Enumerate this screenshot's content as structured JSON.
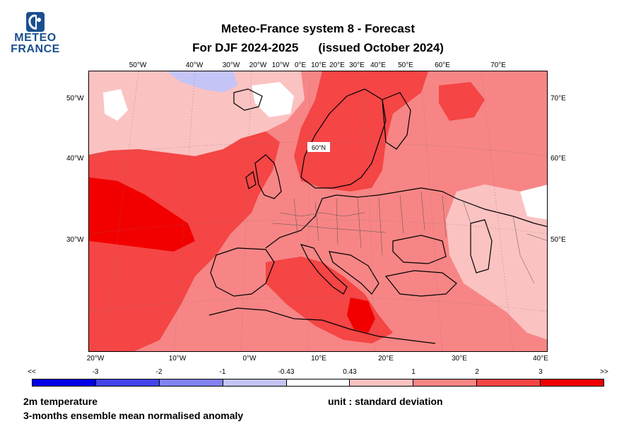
{
  "logo": {
    "line1": "METEO",
    "line2": "FRANCE"
  },
  "title": {
    "line1": "Meteo-France system 8  -  Forecast",
    "line2_left": "For DJF 2024-2025",
    "line2_right": "(issued October 2024)"
  },
  "map": {
    "graticule_label": "60°N",
    "top_labels": [
      "50°W",
      "40°W",
      "30°W",
      "20°W",
      "10°W",
      "0°E",
      "10°E",
      "20°E",
      "30°E",
      "40°E",
      "50°E",
      "60°E",
      "70°E"
    ],
    "left_labels": [
      "50°W",
      "40°W",
      "30°W"
    ],
    "right_labels": [
      "70°E",
      "60°E",
      "50°E"
    ],
    "bottom_labels": [
      "20°W",
      "10°W",
      "0°W",
      "10°E",
      "20°E",
      "30°E",
      "40°E"
    ],
    "fill_levels": {
      "strong_warm": "#f20000",
      "warm": "#f54545",
      "mild_warm": "#f78585",
      "weak_warm": "#fbc2c2",
      "neutral": "#ffffff",
      "weak_cold": "#c4c4f6"
    }
  },
  "colorbar": {
    "labels": [
      "<<",
      "-3",
      "-2",
      "-1",
      "-0.43",
      "0.43",
      "1",
      "2",
      "3",
      ">>"
    ],
    "colors": [
      "#0000e6",
      "#4343ea",
      "#8282f2",
      "#c4c4f6",
      "#ffffff",
      "#fbc2c2",
      "#f78585",
      "#f54545",
      "#f20000"
    ]
  },
  "footer": {
    "variable": "2m temperature",
    "description": "3-months ensemble mean normalised anomaly",
    "unit": "unit : standard deviation"
  }
}
